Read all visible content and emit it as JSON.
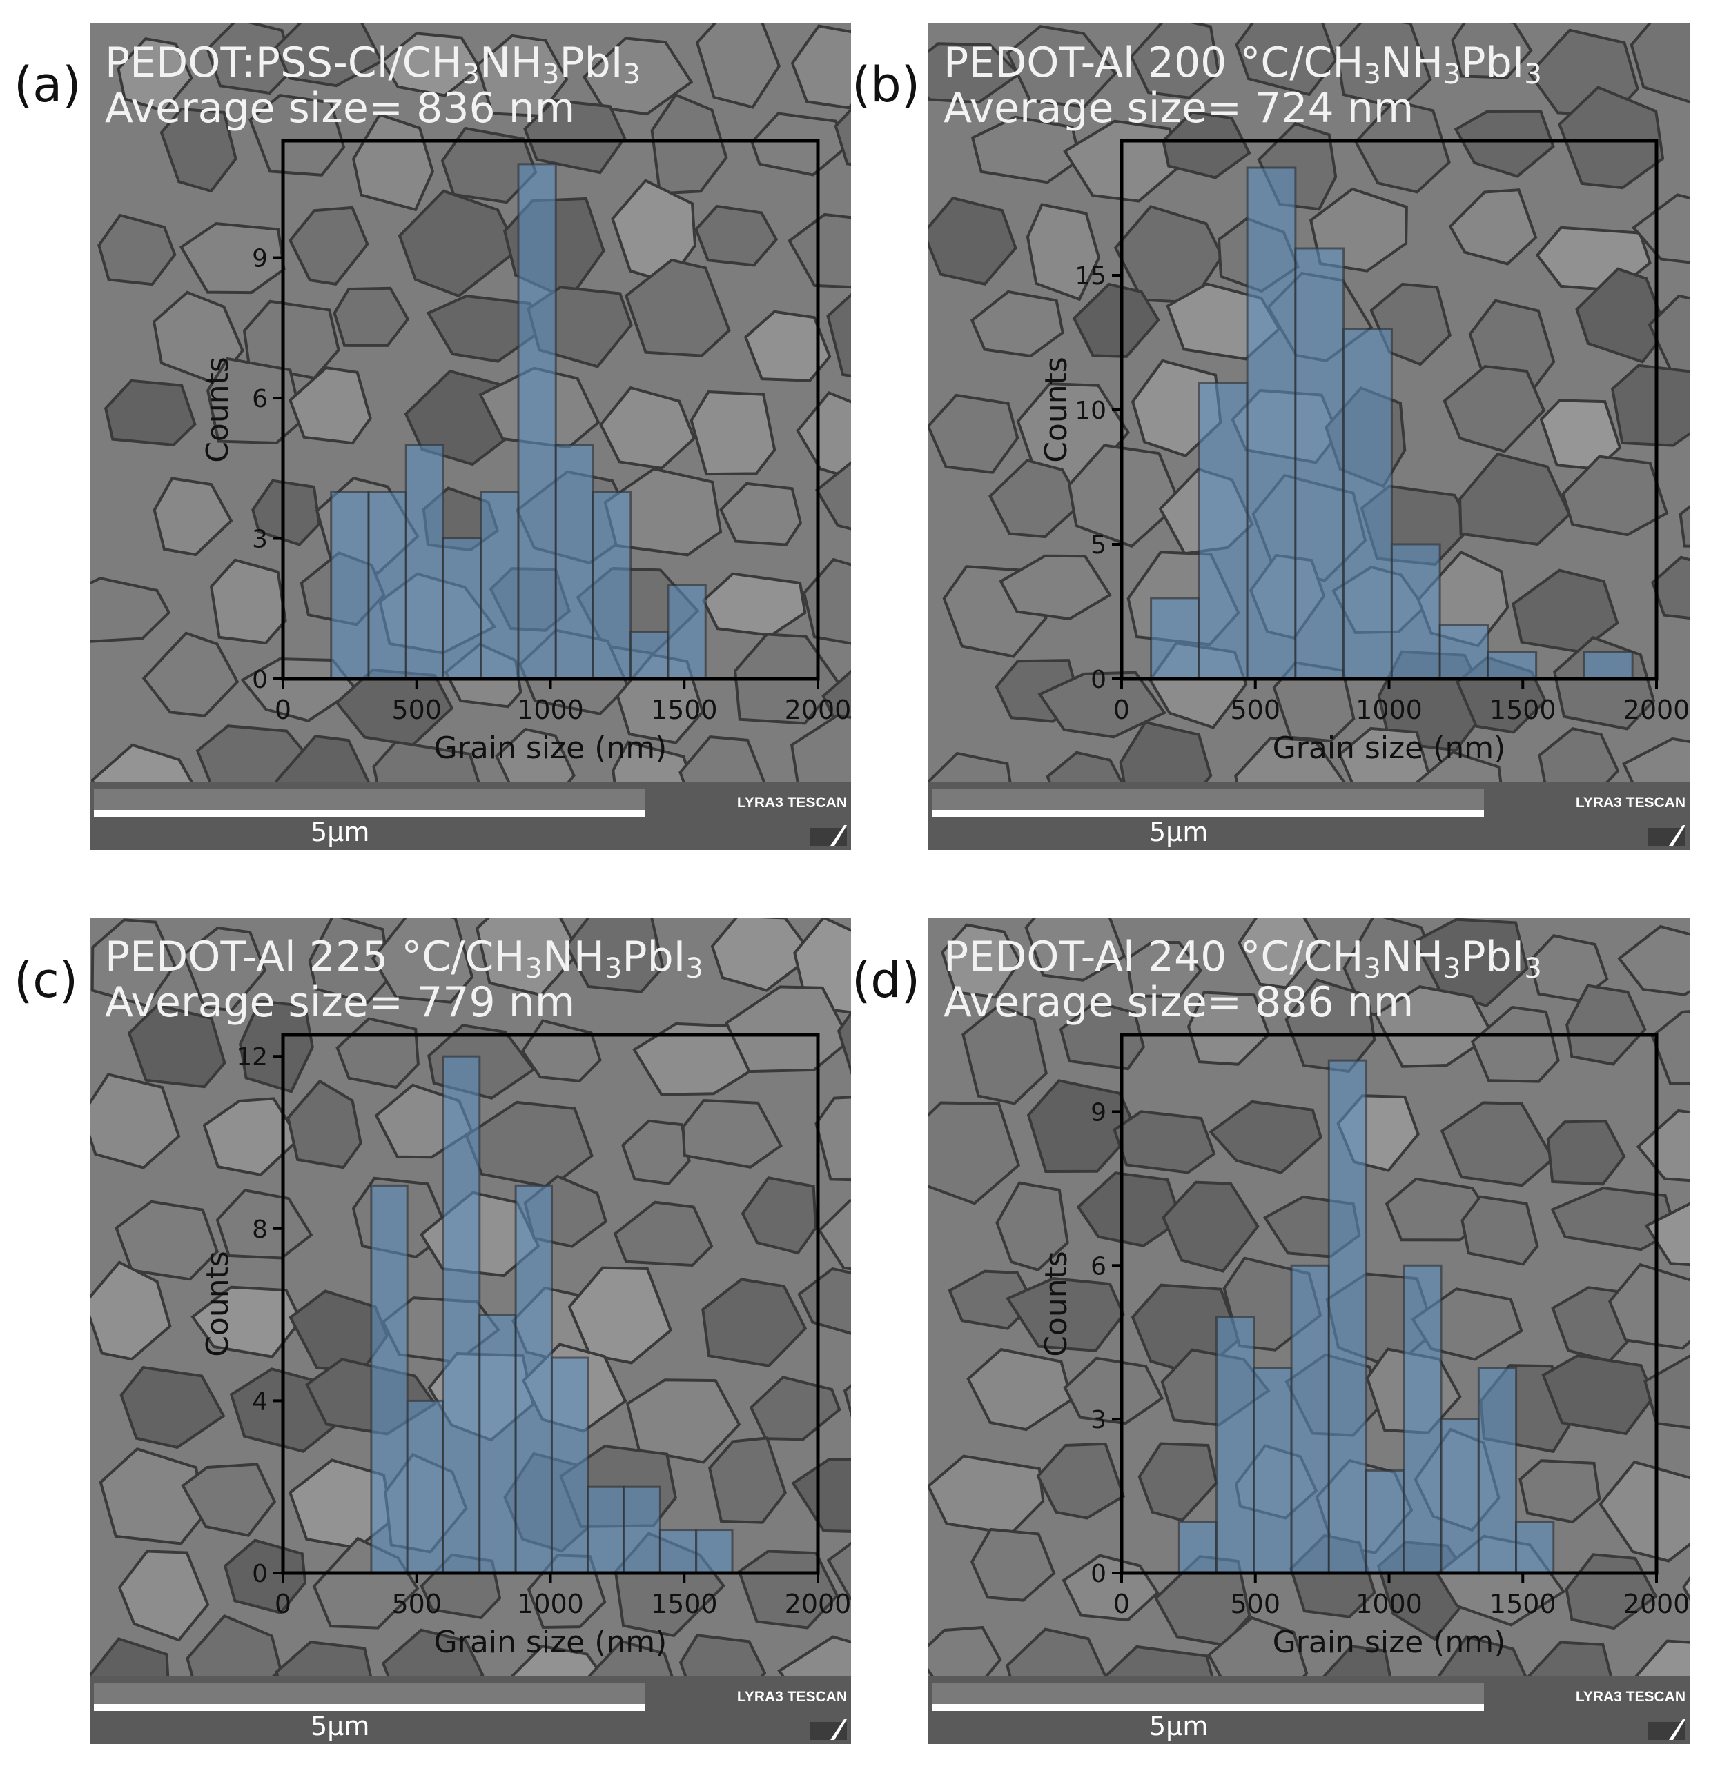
{
  "panels": [
    {
      "letter": "(a)",
      "title_parts": [
        "PEDOT:PSS-Cl/CH",
        "3",
        "NH",
        "3",
        "PbI",
        "3"
      ],
      "subtitle": "Average size= 836 nm",
      "scale_label": "5μm",
      "brand": "LYRA3 TESCAN"
    },
    {
      "letter": "(b)",
      "title_parts": [
        "PEDOT-Al 200 °C/CH",
        "3",
        "NH",
        "3",
        "PbI",
        "3"
      ],
      "subtitle": "Average size= 724 nm",
      "scale_label": "5μm",
      "brand": "LYRA3 TESCAN"
    },
    {
      "letter": "(c)",
      "title_parts": [
        "PEDOT-Al 225 °C/CH",
        "3",
        "NH",
        "3",
        "PbI",
        "3"
      ],
      "subtitle": "Average size= 779 nm",
      "scale_label": "5μm",
      "brand": "LYRA3 TESCAN"
    },
    {
      "letter": "(d)",
      "title_parts": [
        "PEDOT-Al 240 °C/CH",
        "3",
        "NH",
        "3",
        "PbI",
        "3"
      ],
      "subtitle": "Average size= 886 nm",
      "scale_label": "5μm",
      "brand": "LYRA3 TESCAN"
    }
  ],
  "colors": {
    "bar_fill": "#5b8fc4",
    "bar_edge": "#2b2b2b",
    "axes": "#000000",
    "sem_background": "#7d7d7d",
    "scalebar": "#5a5a5a"
  },
  "chart_data": [
    {
      "type": "bar",
      "title": "PEDOT:PSS-Cl/CH3NH3PbI3",
      "subtitle": "Average size= 836 nm",
      "xlabel": "Grain size (nm)",
      "ylabel": "Counts",
      "xlim": [
        0,
        2000
      ],
      "ylim": [
        0,
        11.5
      ],
      "xticks": [
        0,
        500,
        1000,
        1500,
        2000
      ],
      "yticks": [
        0,
        3,
        6,
        9
      ],
      "bin_edges": [
        180,
        320,
        460,
        600,
        740,
        880,
        1020,
        1160,
        1300,
        1440,
        1580
      ],
      "values": [
        4,
        4,
        5,
        3,
        4,
        11,
        5,
        4,
        1,
        2
      ],
      "grid": false
    },
    {
      "type": "bar",
      "title": "PEDOT-Al 200 °C/CH3NH3PbI3",
      "subtitle": "Average size= 724 nm",
      "xlabel": "Grain size (nm)",
      "ylabel": "Counts",
      "xlim": [
        0,
        2000
      ],
      "ylim": [
        0,
        20
      ],
      "xticks": [
        0,
        500,
        1000,
        1500,
        2000
      ],
      "yticks": [
        0,
        5,
        10,
        15
      ],
      "bin_edges": [
        110,
        290,
        470,
        650,
        830,
        1010,
        1190,
        1370,
        1550,
        1730,
        1910
      ],
      "values": [
        3,
        11,
        19,
        16,
        13,
        5,
        2,
        1,
        0,
        1
      ],
      "grid": false
    },
    {
      "type": "bar",
      "title": "PEDOT-Al 225 °C/CH3NH3PbI3",
      "subtitle": "Average size= 779 nm",
      "xlabel": "Grain size (nm)",
      "ylabel": "Counts",
      "xlim": [
        0,
        2000
      ],
      "ylim": [
        0,
        12.5
      ],
      "xticks": [
        0,
        500,
        1000,
        1500,
        2000
      ],
      "yticks": [
        0,
        4,
        8,
        12
      ],
      "bin_edges": [
        330,
        465,
        600,
        735,
        870,
        1005,
        1140,
        1275,
        1410,
        1545,
        1680
      ],
      "values": [
        9,
        4,
        12,
        6,
        9,
        5,
        2,
        2,
        1,
        1
      ],
      "grid": false
    },
    {
      "type": "bar",
      "title": "PEDOT-Al 240 °C/CH3NH3PbI3",
      "subtitle": "Average size= 886 nm",
      "xlabel": "Grain size (nm)",
      "ylabel": "Counts",
      "xlim": [
        0,
        2000
      ],
      "ylim": [
        0,
        10.5
      ],
      "xticks": [
        0,
        500,
        1000,
        1500,
        2000
      ],
      "yticks": [
        0,
        3,
        6,
        9
      ],
      "bin_edges": [
        215,
        355,
        495,
        635,
        775,
        915,
        1055,
        1195,
        1335,
        1475,
        1615
      ],
      "values": [
        1,
        5,
        4,
        6,
        10,
        2,
        6,
        3,
        4,
        1
      ],
      "grid": false
    }
  ]
}
